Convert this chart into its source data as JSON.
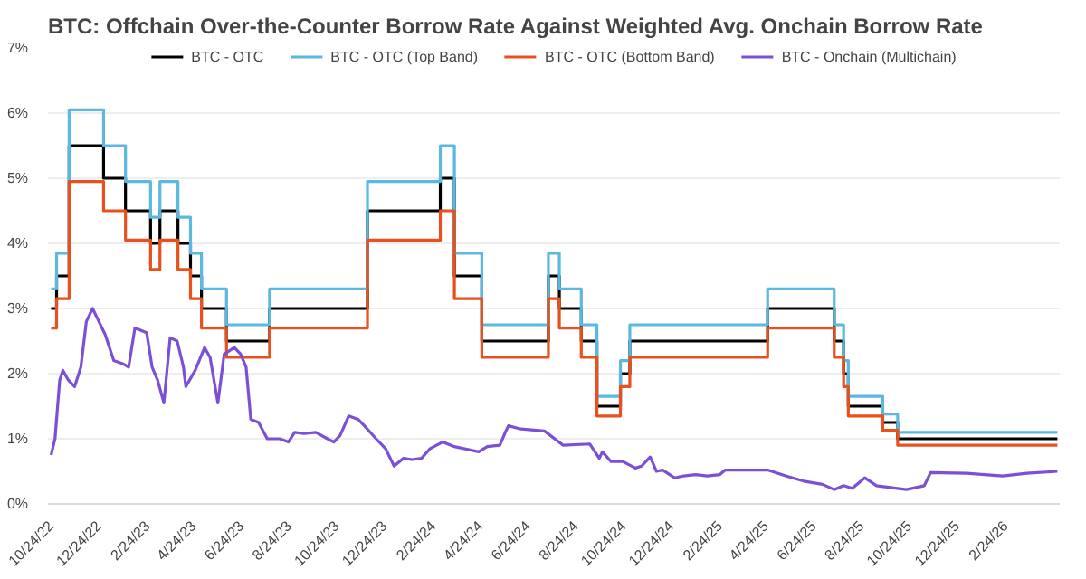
{
  "chart_data": {
    "type": "line",
    "title": "BTC: Offchain Over-the-Counter Borrow Rate Against Weighted Avg. Onchain Borrow Rate",
    "ylim": [
      0,
      7
    ],
    "yticks": [
      {
        "value": 0,
        "label": "0%"
      },
      {
        "value": 1,
        "label": "1%"
      },
      {
        "value": 2,
        "label": "2%"
      },
      {
        "value": 3,
        "label": "3%"
      },
      {
        "value": 4,
        "label": "4%"
      },
      {
        "value": 5,
        "label": "5%"
      },
      {
        "value": 6,
        "label": "6%"
      },
      {
        "value": 7,
        "label": "7%"
      }
    ],
    "xlim": [
      "2022-10-20",
      "2026-05-04"
    ],
    "xticks": [
      {
        "value": "2022-10-24",
        "label": "10/24/22"
      },
      {
        "value": "2022-12-24",
        "label": "12/24/22"
      },
      {
        "value": "2023-02-24",
        "label": "2/24/23"
      },
      {
        "value": "2023-04-24",
        "label": "4/24/23"
      },
      {
        "value": "2023-06-24",
        "label": "6/24/23"
      },
      {
        "value": "2023-08-24",
        "label": "8/24/23"
      },
      {
        "value": "2023-10-24",
        "label": "10/24/23"
      },
      {
        "value": "2023-12-24",
        "label": "12/24/23"
      },
      {
        "value": "2024-02-24",
        "label": "2/24/24"
      },
      {
        "value": "2024-04-24",
        "label": "4/24/24"
      },
      {
        "value": "2024-06-24",
        "label": "6/24/24"
      },
      {
        "value": "2024-08-24",
        "label": "8/24/24"
      },
      {
        "value": "2024-10-24",
        "label": "10/24/24"
      },
      {
        "value": "2024-12-24",
        "label": "12/24/24"
      },
      {
        "value": "2025-02-24",
        "label": "2/24/25"
      },
      {
        "value": "2025-04-24",
        "label": "4/24/25"
      },
      {
        "value": "2025-06-24",
        "label": "6/24/25"
      },
      {
        "value": "2025-08-24",
        "label": "8/24/25"
      },
      {
        "value": "2025-10-24",
        "label": "10/24/25"
      },
      {
        "value": "2025-12-24",
        "label": "12/24/25"
      },
      {
        "value": "2026-02-24",
        "label": "2/24/26"
      }
    ],
    "grid": "y",
    "legend": "top",
    "series": [
      {
        "name": "BTC - OTC",
        "type": "step",
        "color": "#000000",
        "x": [
          "2022-10-24",
          "2022-10-31",
          "2022-11-16",
          "2022-12-30",
          "2023-01-27",
          "2023-02-28",
          "2023-03-12",
          "2023-04-04",
          "2023-04-20",
          "2023-05-04",
          "2023-06-05",
          "2023-07-30",
          "2023-12-02",
          "2024-03-04",
          "2024-03-22",
          "2024-04-26",
          "2024-07-20",
          "2024-08-03",
          "2024-08-31",
          "2024-09-20",
          "2024-10-20",
          "2024-11-01",
          "2025-04-26",
          "2025-07-20",
          "2025-08-01",
          "2025-08-07",
          "2025-09-20",
          "2025-10-09",
          "2026-05-01"
        ],
        "values": [
          3.0,
          3.5,
          5.5,
          5.0,
          4.5,
          4.0,
          4.5,
          4.0,
          3.5,
          3.0,
          2.5,
          3.0,
          4.5,
          5.0,
          3.5,
          2.5,
          3.5,
          3.0,
          2.5,
          1.5,
          2.0,
          2.5,
          3.0,
          2.5,
          2.0,
          1.5,
          1.25,
          1.0,
          1.0
        ]
      },
      {
        "name": "BTC - OTC (Top Band)",
        "type": "step",
        "color": "#5bb8e0",
        "x": [
          "2022-10-24",
          "2022-10-31",
          "2022-11-16",
          "2022-12-30",
          "2023-01-27",
          "2023-02-28",
          "2023-03-12",
          "2023-04-04",
          "2023-04-20",
          "2023-05-04",
          "2023-06-05",
          "2023-07-30",
          "2023-12-02",
          "2024-03-04",
          "2024-03-22",
          "2024-04-26",
          "2024-07-20",
          "2024-08-03",
          "2024-08-31",
          "2024-09-20",
          "2024-10-20",
          "2024-11-01",
          "2025-04-26",
          "2025-07-20",
          "2025-08-01",
          "2025-08-07",
          "2025-09-20",
          "2025-10-09",
          "2026-05-01"
        ],
        "values": [
          3.3,
          3.85,
          6.05,
          5.5,
          4.95,
          4.4,
          4.95,
          4.4,
          3.85,
          3.3,
          2.75,
          3.3,
          4.95,
          5.5,
          3.85,
          2.75,
          3.85,
          3.3,
          2.75,
          1.65,
          2.2,
          2.75,
          3.3,
          2.75,
          2.2,
          1.65,
          1.38,
          1.1,
          1.1
        ]
      },
      {
        "name": "BTC - OTC (Bottom Band)",
        "type": "step",
        "color": "#e8501e",
        "x": [
          "2022-10-24",
          "2022-10-31",
          "2022-11-16",
          "2022-12-30",
          "2023-01-27",
          "2023-02-28",
          "2023-03-12",
          "2023-04-04",
          "2023-04-20",
          "2023-05-04",
          "2023-06-05",
          "2023-07-30",
          "2023-12-02",
          "2024-03-04",
          "2024-03-22",
          "2024-04-26",
          "2024-07-20",
          "2024-08-03",
          "2024-08-31",
          "2024-09-20",
          "2024-10-20",
          "2024-11-01",
          "2025-04-26",
          "2025-07-20",
          "2025-08-01",
          "2025-08-07",
          "2025-09-20",
          "2025-10-09",
          "2026-05-01"
        ],
        "values": [
          2.7,
          3.15,
          4.95,
          4.5,
          4.05,
          3.6,
          4.05,
          3.6,
          3.15,
          2.7,
          2.25,
          2.7,
          4.05,
          4.5,
          3.15,
          2.25,
          3.15,
          2.7,
          2.25,
          1.35,
          1.8,
          2.25,
          2.7,
          2.25,
          1.8,
          1.35,
          1.13,
          0.9,
          0.9
        ]
      },
      {
        "name": "BTC - Onchain (Multichain)",
        "type": "line",
        "color": "#7b4fd6",
        "x": [
          "2022-10-24",
          "2022-10-29",
          "2022-11-04",
          "2022-11-08",
          "2022-11-15",
          "2022-11-23",
          "2022-12-01",
          "2022-12-08",
          "2022-12-16",
          "2022-12-24",
          "2023-01-01",
          "2023-01-12",
          "2023-01-24",
          "2023-01-31",
          "2023-02-08",
          "2023-02-23",
          "2023-03-02",
          "2023-03-09",
          "2023-03-17",
          "2023-03-25",
          "2023-04-03",
          "2023-04-11",
          "2023-04-14",
          "2023-04-26",
          "2023-05-08",
          "2023-05-15",
          "2023-05-25",
          "2023-06-02",
          "2023-06-15",
          "2023-06-23",
          "2023-06-30",
          "2023-07-06",
          "2023-07-16",
          "2023-07-27",
          "2023-08-12",
          "2023-08-23",
          "2023-08-31",
          "2023-09-12",
          "2023-09-27",
          "2023-10-12",
          "2023-10-20",
          "2023-10-28",
          "2023-11-08",
          "2023-11-20",
          "2023-11-28",
          "2023-12-13",
          "2023-12-25",
          "2024-01-05",
          "2024-01-17",
          "2024-01-28",
          "2024-02-09",
          "2024-02-20",
          "2024-03-07",
          "2024-03-22",
          "2024-04-22",
          "2024-05-03",
          "2024-05-19",
          "2024-05-26",
          "2024-05-30",
          "2024-06-15",
          "2024-07-15",
          "2024-08-08",
          "2024-09-11",
          "2024-09-23",
          "2024-09-27",
          "2024-10-08",
          "2024-10-23",
          "2024-11-08",
          "2024-11-16",
          "2024-11-27",
          "2024-12-05",
          "2024-12-13",
          "2024-12-28",
          "2025-01-09",
          "2025-01-24",
          "2025-02-08",
          "2025-02-24",
          "2025-03-03",
          "2025-04-03",
          "2025-04-26",
          "2025-05-19",
          "2025-06-11",
          "2025-07-05",
          "2025-07-20",
          "2025-08-01",
          "2025-08-12",
          "2025-08-28",
          "2025-09-12",
          "2025-10-20",
          "2025-11-12",
          "2025-11-20",
          "2026-01-05",
          "2026-02-20",
          "2026-03-23",
          "2026-05-01"
        ],
        "values": [
          0.75,
          1.0,
          1.9,
          2.05,
          1.9,
          1.8,
          2.1,
          2.8,
          3.0,
          2.8,
          2.6,
          2.2,
          2.15,
          2.1,
          2.7,
          2.63,
          2.1,
          1.9,
          1.55,
          2.55,
          2.5,
          2.1,
          1.8,
          2.05,
          2.4,
          2.25,
          1.55,
          2.3,
          2.4,
          2.3,
          2.1,
          1.3,
          1.25,
          1.0,
          1.0,
          0.95,
          1.1,
          1.08,
          1.1,
          1.0,
          0.95,
          1.05,
          1.35,
          1.3,
          1.2,
          1.0,
          0.85,
          0.58,
          0.7,
          0.68,
          0.7,
          0.85,
          0.95,
          0.88,
          0.8,
          0.88,
          0.9,
          1.1,
          1.2,
          1.15,
          1.12,
          0.9,
          0.92,
          0.7,
          0.8,
          0.65,
          0.65,
          0.55,
          0.58,
          0.72,
          0.5,
          0.52,
          0.4,
          0.43,
          0.45,
          0.43,
          0.45,
          0.52,
          0.52,
          0.52,
          0.43,
          0.35,
          0.3,
          0.22,
          0.28,
          0.24,
          0.4,
          0.28,
          0.22,
          0.28,
          0.48,
          0.47,
          0.43,
          0.47,
          0.5
        ]
      }
    ]
  }
}
